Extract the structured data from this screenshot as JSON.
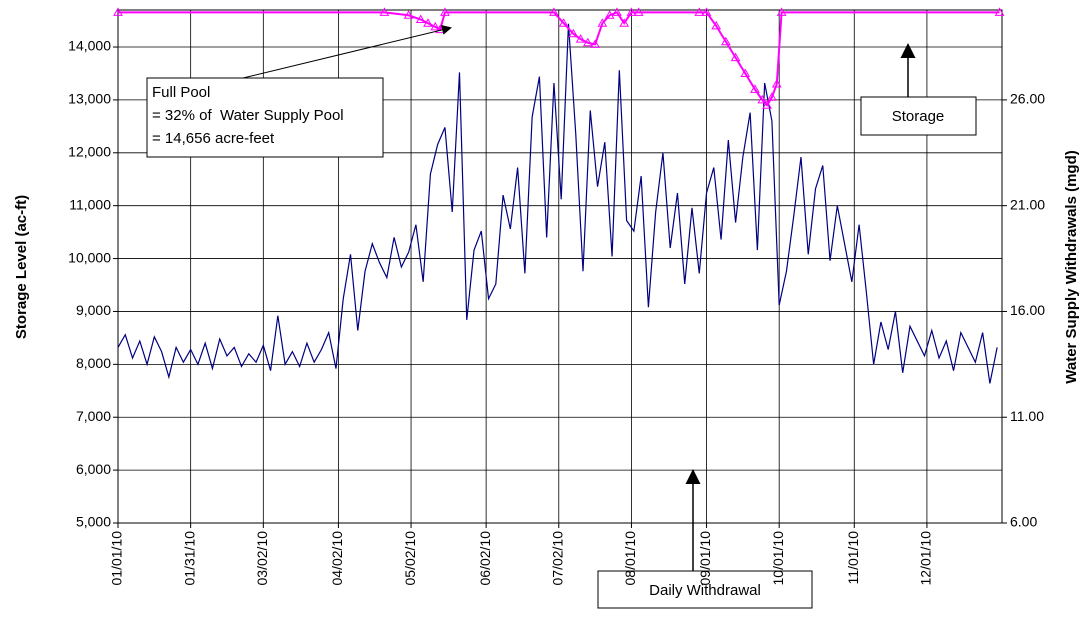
{
  "chart_data": {
    "type": "line",
    "y_label": "Storage Level (ac-ft)",
    "y2_label": "Water Supply Withdrawals (mgd)",
    "xlim": [
      0,
      365
    ],
    "xticks": [
      {
        "value": 0,
        "label": "01/01/10"
      },
      {
        "value": 30,
        "label": "01/31/10"
      },
      {
        "value": 60,
        "label": "03/02/10"
      },
      {
        "value": 91,
        "label": "04/02/10"
      },
      {
        "value": 121,
        "label": "05/02/10"
      },
      {
        "value": 152,
        "label": "06/02/10"
      },
      {
        "value": 182,
        "label": "07/02/10"
      },
      {
        "value": 212,
        "label": "08/01/10"
      },
      {
        "value": 243,
        "label": "09/01/10"
      },
      {
        "value": 273,
        "label": "10/01/10"
      },
      {
        "value": 304,
        "label": "11/01/10"
      },
      {
        "value": 334,
        "label": "12/01/10"
      }
    ],
    "ylim": [
      5000,
      14700
    ],
    "yticks": [
      {
        "value": 5000,
        "label": "5,000"
      },
      {
        "value": 6000,
        "label": "6,000"
      },
      {
        "value": 7000,
        "label": "7,000"
      },
      {
        "value": 8000,
        "label": "8,000"
      },
      {
        "value": 9000,
        "label": "9,000"
      },
      {
        "value": 10000,
        "label": "10,000"
      },
      {
        "value": 11000,
        "label": "11,000"
      },
      {
        "value": 12000,
        "label": "12,000"
      },
      {
        "value": 13000,
        "label": "13,000"
      },
      {
        "value": 14000,
        "label": "14,000"
      }
    ],
    "y2lim": [
      6,
      30.25
    ],
    "y2ticks": [
      {
        "value": 6,
        "label": "6.00"
      },
      {
        "value": 11,
        "label": "11.00"
      },
      {
        "value": 16,
        "label": "16.00"
      },
      {
        "value": 21,
        "label": "21.00"
      },
      {
        "value": 26,
        "label": "26.00"
      }
    ],
    "grid": true,
    "series": [
      {
        "name": "Daily Withdrawal",
        "color": "#000080",
        "axis": "y2",
        "x": [
          0,
          3,
          6,
          9,
          12,
          15,
          18,
          21,
          24,
          27,
          30,
          33,
          36,
          39,
          42,
          45,
          48,
          51,
          54,
          57,
          60,
          63,
          66,
          69,
          72,
          75,
          78,
          81,
          84,
          87,
          90,
          93,
          96,
          99,
          102,
          105,
          108,
          111,
          114,
          117,
          120,
          123,
          126,
          129,
          132,
          135,
          138,
          141,
          144,
          147,
          150,
          153,
          156,
          159,
          162,
          165,
          168,
          171,
          174,
          177,
          180,
          183,
          186,
          189,
          192,
          195,
          198,
          201,
          204,
          207,
          210,
          213,
          216,
          219,
          222,
          225,
          228,
          231,
          234,
          237,
          240,
          243,
          246,
          249,
          252,
          255,
          258,
          261,
          264,
          267,
          270,
          273,
          276,
          279,
          282,
          285,
          288,
          291,
          294,
          297,
          300,
          303,
          306,
          309,
          312,
          315,
          318,
          321,
          324,
          327,
          330,
          333,
          336,
          339,
          342,
          345,
          348,
          351,
          354,
          357,
          360,
          363
        ],
        "values": [
          14.3,
          14.9,
          13.8,
          14.6,
          13.5,
          14.8,
          14.1,
          12.9,
          14.3,
          13.6,
          14.2,
          13.5,
          14.5,
          13.3,
          14.7,
          13.9,
          14.3,
          13.4,
          14.0,
          13.6,
          14.4,
          13.2,
          15.8,
          13.5,
          14.1,
          13.4,
          14.5,
          13.6,
          14.2,
          15.0,
          13.3,
          16.6,
          18.7,
          15.1,
          17.9,
          19.2,
          18.3,
          17.6,
          19.5,
          18.1,
          18.8,
          20.1,
          17.4,
          22.5,
          23.9,
          24.7,
          20.7,
          27.3,
          15.6,
          18.9,
          19.8,
          16.6,
          17.3,
          21.5,
          19.9,
          22.8,
          17.8,
          25.2,
          27.1,
          19.5,
          26.8,
          21.3,
          29.6,
          24.4,
          17.9,
          25.5,
          21.9,
          24.0,
          18.6,
          27.4,
          20.3,
          19.8,
          22.4,
          16.2,
          20.7,
          23.5,
          19.0,
          21.6,
          17.3,
          20.9,
          17.8,
          21.6,
          22.8,
          19.4,
          24.1,
          20.2,
          23.3,
          25.4,
          18.9,
          26.8,
          25.0,
          16.3,
          17.9,
          20.5,
          23.3,
          18.7,
          21.8,
          22.9,
          18.4,
          21.0,
          19.2,
          17.4,
          20.1,
          16.9,
          13.5,
          15.5,
          14.2,
          16.0,
          13.1,
          15.3,
          14.6,
          13.9,
          15.1,
          13.8,
          14.6,
          13.2,
          15.0,
          14.3,
          13.6,
          15.0,
          12.6,
          14.3
        ]
      },
      {
        "name": "Storage",
        "color": "#ff00ff",
        "x": [
          0,
          110,
          120,
          125,
          128,
          131,
          133,
          135,
          180,
          184,
          188,
          191,
          194,
          197,
          200,
          203,
          206,
          209,
          212,
          215,
          240,
          243,
          247,
          251,
          255,
          259,
          263,
          266,
          268,
          270,
          272,
          274,
          364
        ],
        "values": [
          14656,
          14656,
          14600,
          14520,
          14450,
          14380,
          14330,
          14656,
          14656,
          14450,
          14250,
          14150,
          14080,
          14050,
          14450,
          14600,
          14656,
          14450,
          14656,
          14656,
          14656,
          14656,
          14400,
          14100,
          13800,
          13500,
          13200,
          13000,
          12900,
          13050,
          13300,
          14656,
          14656
        ]
      }
    ],
    "annotations": [
      "Full Pool",
      "= 32% of  Water Supply Pool",
      "= 14,656 acre-feet",
      "Storage",
      "Daily Withdrawal"
    ]
  }
}
